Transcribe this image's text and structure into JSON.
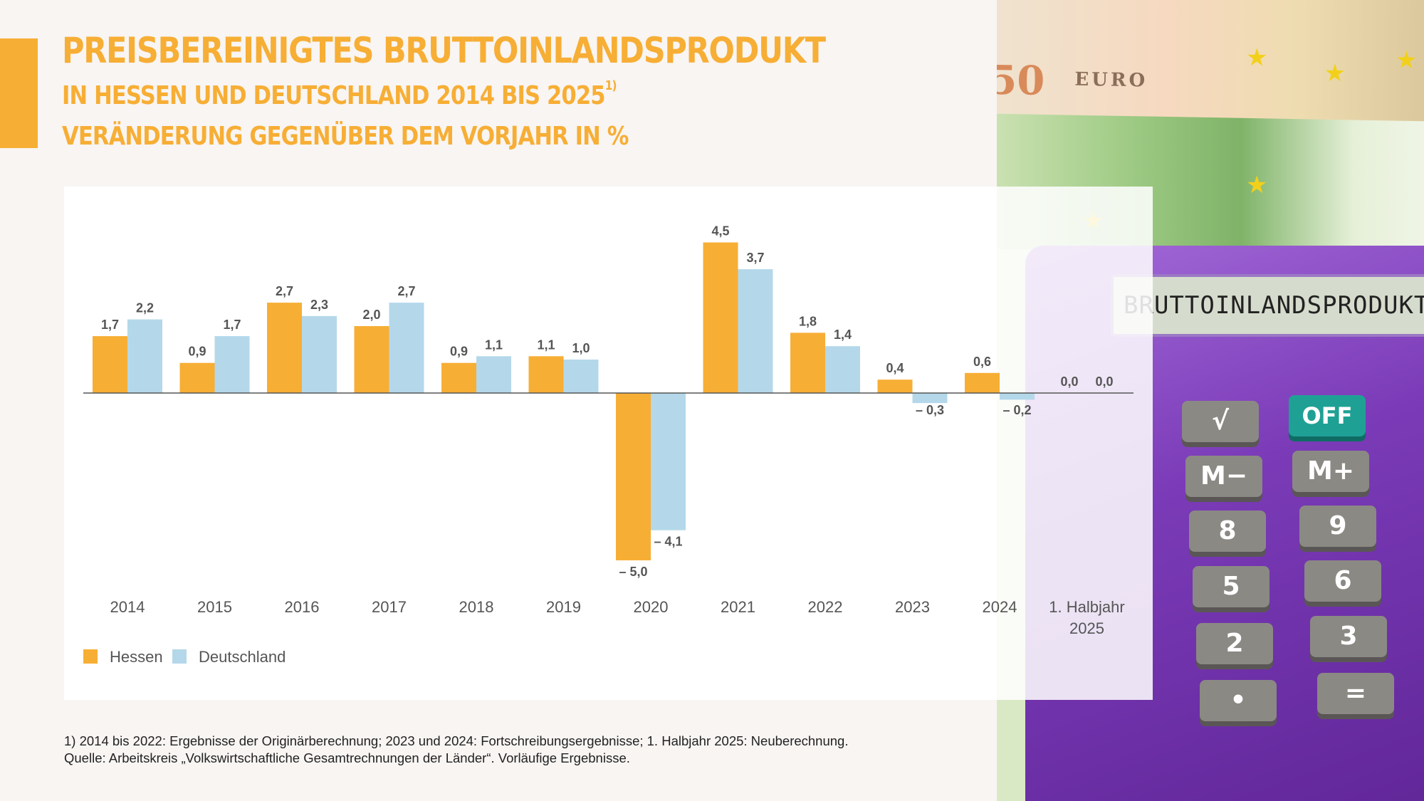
{
  "header": {
    "title": "PREISBEREINIGTES BRUTTOINLANDSPRODUKT",
    "subtitle1": "IN HESSEN UND DEUTSCHLAND 2014 BIS 2025",
    "subtitle1_footnote_mark": "1)",
    "subtitle2": "VERÄNDERUNG GEGENÜBER DEM VORJAHR IN %"
  },
  "colors": {
    "accent": "#F7AE35",
    "hessen": "#F7AE35",
    "deutschland": "#B4D8EA"
  },
  "chart_data": {
    "type": "bar",
    "title": "Preisbereinigtes Bruttoinlandsprodukt in Hessen und Deutschland 2014 bis 2025 – Veränderung gegenüber dem Vorjahr in %",
    "categories": [
      "2014",
      "2015",
      "2016",
      "2017",
      "2018",
      "2019",
      "2020",
      "2021",
      "2022",
      "2023",
      "2024",
      "1. Halbjahr 2025"
    ],
    "series": [
      {
        "name": "Hessen",
        "values": [
          1.7,
          0.9,
          2.7,
          2.0,
          0.9,
          1.1,
          -5.0,
          4.5,
          1.8,
          0.4,
          0.6,
          0.0
        ],
        "labels": [
          "1,7",
          "0,9",
          "2,7",
          "2,0",
          "0,9",
          "1,1",
          "– 5,0",
          "4,5",
          "1,8",
          "0,4",
          "0,6",
          "0,0"
        ]
      },
      {
        "name": "Deutschland",
        "values": [
          2.2,
          1.7,
          2.3,
          2.7,
          1.1,
          1.0,
          -4.1,
          3.7,
          1.4,
          -0.3,
          -0.2,
          0.0
        ],
        "labels": [
          "2,2",
          "1,7",
          "2,3",
          "2,7",
          "1,1",
          "1,0",
          "– 4,1",
          "3,7",
          "1,4",
          "– 0,3",
          "– 0,2",
          "0,0"
        ]
      }
    ],
    "xlabel": "",
    "ylabel": "",
    "ylim": [
      -5.0,
      4.5
    ],
    "grid": false,
    "legend": "bottom-left"
  },
  "footnotes": {
    "line1": "1) 2014 bis 2022: Ergebnisse der Originärberechnung; 2023 und 2024: Fortschreibungsergebnisse; 1. Halbjahr 2025: Neuberechnung.",
    "line2": "Quelle: Arbeitskreis „Volkswirtschaftliche Gesamtrechnungen der Länder“. Vorläufige Ergebnisse."
  },
  "photo": {
    "banknote_value": "50",
    "banknote_currency": "EURO",
    "calculator_display": "BRUTTOINLANDSPRODUKT",
    "keys": [
      "√",
      "OFF",
      "M−",
      "M+",
      "8",
      "9",
      "5",
      "6",
      "2",
      "3",
      "•",
      "="
    ]
  }
}
